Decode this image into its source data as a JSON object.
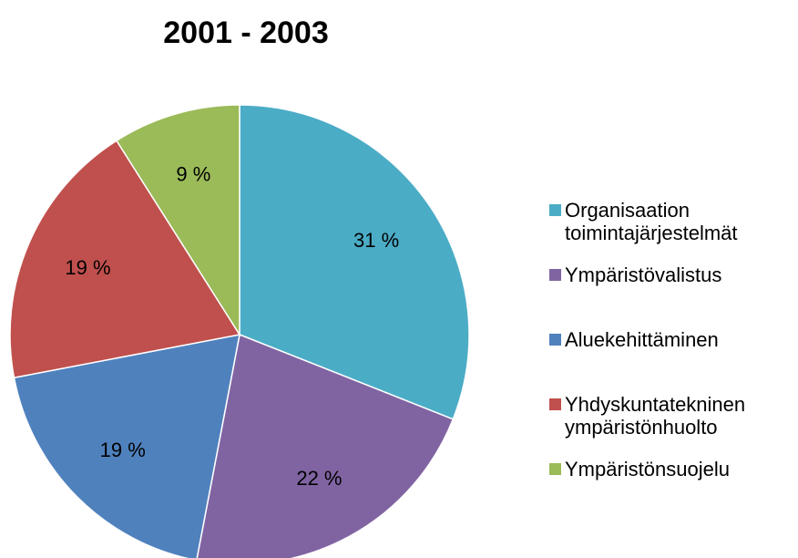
{
  "chart_data": {
    "type": "pie",
    "title": "2001 - 2003",
    "categories": [
      "Organisaation toimintajärjestelmät",
      "Ympäristövalistus",
      "Aluekehittäminen",
      "Yhdyskuntatekninen ympäristönhuolto",
      "Ympäristönsuojelu"
    ],
    "values": [
      31,
      22,
      19,
      19,
      9
    ],
    "value_labels": [
      "31 %",
      "22 %",
      "19 %",
      "19 %",
      "9 %"
    ],
    "colors": [
      "#4bacc6",
      "#8064a2",
      "#4f81bd",
      "#c0504d",
      "#9bbb59"
    ],
    "legend": "right"
  }
}
